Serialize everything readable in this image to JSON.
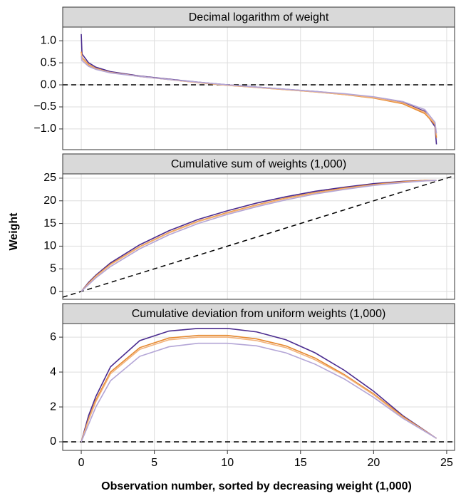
{
  "chart_data": [
    {
      "type": "line",
      "title": "Decimal logarithm of weight",
      "x": [
        0,
        0.05,
        0.5,
        1,
        2,
        4,
        6,
        8,
        10,
        12,
        14,
        16,
        18,
        20,
        22,
        23.5,
        24.2,
        24.3
      ],
      "series": [
        {
          "color": "#4b2c8f",
          "values": [
            1.15,
            0.7,
            0.5,
            0.4,
            0.3,
            0.2,
            0.13,
            0.06,
            0.0,
            -0.05,
            -0.1,
            -0.15,
            -0.21,
            -0.28,
            -0.4,
            -0.6,
            -0.95,
            -1.35
          ]
        },
        {
          "color": "#e6892f",
          "values": [
            0.75,
            0.62,
            0.46,
            0.37,
            0.28,
            0.19,
            0.12,
            0.05,
            -0.01,
            -0.06,
            -0.11,
            -0.16,
            -0.22,
            -0.3,
            -0.43,
            -0.65,
            -0.9,
            -1.2
          ]
        },
        {
          "color": "#f2b27a",
          "values": [
            0.72,
            0.6,
            0.44,
            0.36,
            0.28,
            0.19,
            0.12,
            0.05,
            -0.01,
            -0.06,
            -0.11,
            -0.16,
            -0.22,
            -0.29,
            -0.41,
            -0.62,
            -0.88,
            -1.15
          ]
        },
        {
          "color": "#b3a5d6",
          "values": [
            0.65,
            0.55,
            0.42,
            0.35,
            0.27,
            0.19,
            0.12,
            0.06,
            0.0,
            -0.05,
            -0.1,
            -0.15,
            -0.2,
            -0.27,
            -0.38,
            -0.56,
            -0.85,
            -1.1
          ]
        }
      ],
      "xlim": [
        -1.27,
        25.54
      ],
      "xticks": [
        0,
        5,
        10,
        15,
        20,
        25
      ],
      "ylim": [
        -1.47,
        1.31
      ],
      "yticks": [
        {
          "value": -1.0,
          "label": "−1.0"
        },
        {
          "value": -0.5,
          "label": "−0.5"
        },
        {
          "value": 0.0,
          "label": "0.0"
        },
        0.5,
        {
          "value": 1.0,
          "label": "1.0"
        }
      ],
      "grid": true,
      "reference_line": {
        "slope": 0,
        "intercept": 0
      }
    },
    {
      "type": "line",
      "title": "Cumulative sum of weights (1,000)",
      "ylabel": "Weight",
      "x": [
        0,
        0.5,
        1,
        2,
        4,
        6,
        8,
        10,
        12,
        14,
        16,
        18,
        20,
        22,
        23.5,
        24.3
      ],
      "series": [
        {
          "color": "#4b2c8f",
          "values": [
            0,
            2.0,
            3.6,
            6.3,
            10.3,
            13.4,
            15.9,
            17.8,
            19.5,
            20.9,
            22.1,
            23.0,
            23.8,
            24.3,
            24.5,
            24.5
          ]
        },
        {
          "color": "#e6892f",
          "values": [
            0,
            1.8,
            3.4,
            6.0,
            9.9,
            13.0,
            15.5,
            17.4,
            19.1,
            20.6,
            21.8,
            22.8,
            23.6,
            24.2,
            24.5,
            24.5
          ]
        },
        {
          "color": "#f2b27a",
          "values": [
            0,
            1.7,
            3.3,
            5.9,
            9.8,
            12.9,
            15.4,
            17.3,
            19.0,
            20.5,
            21.7,
            22.7,
            23.5,
            24.1,
            24.4,
            24.5
          ]
        },
        {
          "color": "#b3a5d6",
          "values": [
            0,
            1.5,
            3.0,
            5.5,
            9.4,
            12.5,
            15.0,
            17.0,
            18.7,
            20.2,
            21.5,
            22.5,
            23.4,
            24.0,
            24.4,
            24.5
          ]
        }
      ],
      "xlim": [
        -1.27,
        25.54
      ],
      "xticks": [
        0,
        5,
        10,
        15,
        20,
        25
      ],
      "ylim": [
        -1.73,
        25.94
      ],
      "yticks": [
        0,
        5,
        10,
        15,
        20,
        25
      ],
      "grid": true,
      "reference_line": {
        "slope": 1,
        "intercept": 0
      }
    },
    {
      "type": "line",
      "title": "Cumulative deviation from uniform weights (1,000)",
      "xlabel": "Observation number, sorted by decreasing weight (1,000)",
      "x": [
        0,
        0.5,
        1,
        2,
        4,
        6,
        8,
        10,
        12,
        14,
        16,
        18,
        20,
        22,
        24.3
      ],
      "series": [
        {
          "color": "#4b2c8f",
          "values": [
            0,
            1.5,
            2.6,
            4.3,
            5.8,
            6.35,
            6.5,
            6.5,
            6.3,
            5.85,
            5.1,
            4.1,
            2.9,
            1.5,
            0.2
          ]
        },
        {
          "color": "#e6892f",
          "values": [
            0,
            1.3,
            2.4,
            4.0,
            5.4,
            5.95,
            6.1,
            6.1,
            5.9,
            5.5,
            4.8,
            3.85,
            2.75,
            1.45,
            0.2
          ]
        },
        {
          "color": "#f2b27a",
          "values": [
            0,
            1.25,
            2.3,
            3.9,
            5.3,
            5.85,
            6.0,
            6.0,
            5.8,
            5.4,
            4.7,
            3.8,
            2.7,
            1.4,
            0.2
          ]
        },
        {
          "color": "#b3a5d6",
          "values": [
            0,
            1.0,
            2.0,
            3.5,
            4.9,
            5.45,
            5.65,
            5.65,
            5.5,
            5.1,
            4.45,
            3.6,
            2.55,
            1.35,
            0.2
          ]
        }
      ],
      "xlim": [
        -1.27,
        25.54
      ],
      "xticks": [
        0,
        5,
        10,
        15,
        20,
        25
      ],
      "ylim": [
        -0.49,
        6.78
      ],
      "yticks": [
        0,
        2,
        4,
        6
      ],
      "grid": true,
      "reference_line": {
        "slope": 0,
        "intercept": 0
      }
    }
  ]
}
